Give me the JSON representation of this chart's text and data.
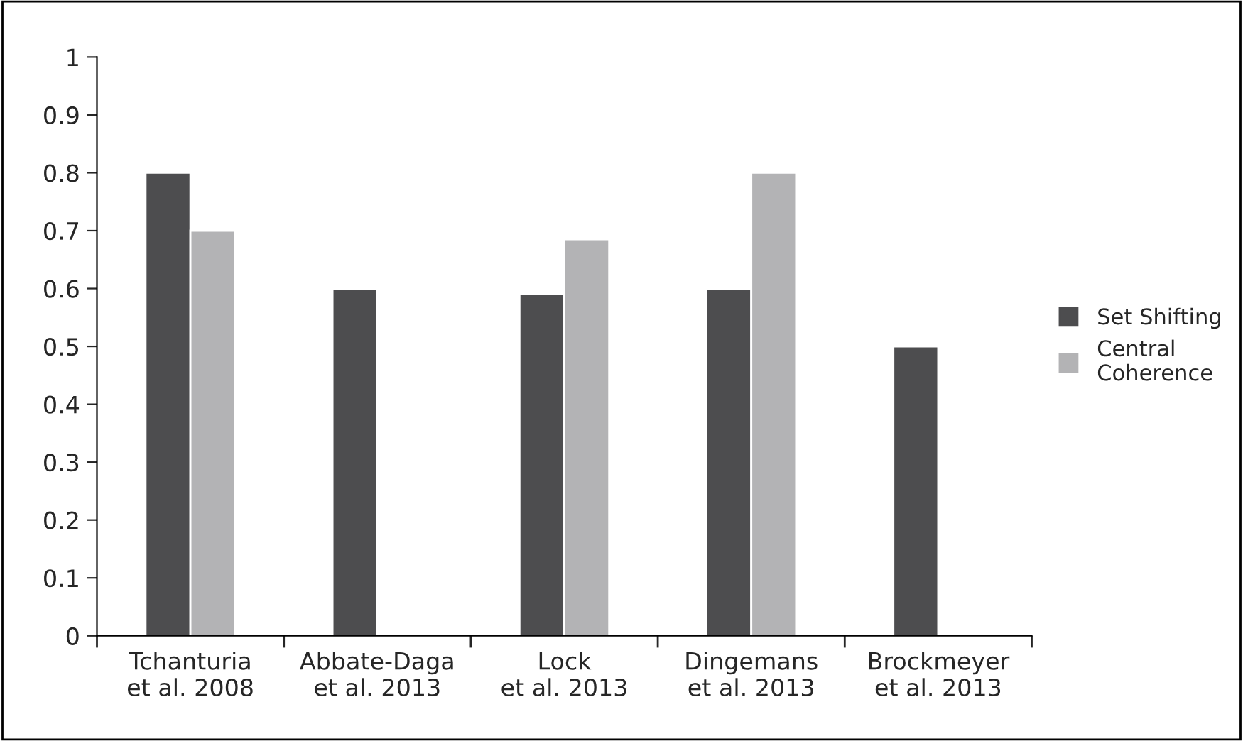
{
  "chart_data": {
    "type": "bar",
    "categories": [
      "Tchanturia\net al. 2008",
      "Abbate-Daga\net al. 2013",
      "Lock\net al. 2013",
      "Dingemans\net al. 2013",
      "Brockmeyer\net al. 2013"
    ],
    "series": [
      {
        "name": "Set Shifting",
        "color": "#4d4d4f",
        "values": [
          0.8,
          0.6,
          0.59,
          0.6,
          0.5
        ]
      },
      {
        "name": "Central Coherence",
        "color": "#b3b3b5",
        "values": [
          0.7,
          null,
          0.685,
          0.8,
          null
        ]
      }
    ],
    "ylim": [
      0,
      1
    ],
    "yticks": [
      0,
      0.1,
      0.2,
      0.3,
      0.4,
      0.5,
      0.6,
      0.7,
      0.8,
      0.9,
      {
        "value": 1,
        "label": "1"
      }
    ],
    "grid": false,
    "legend": "right"
  }
}
